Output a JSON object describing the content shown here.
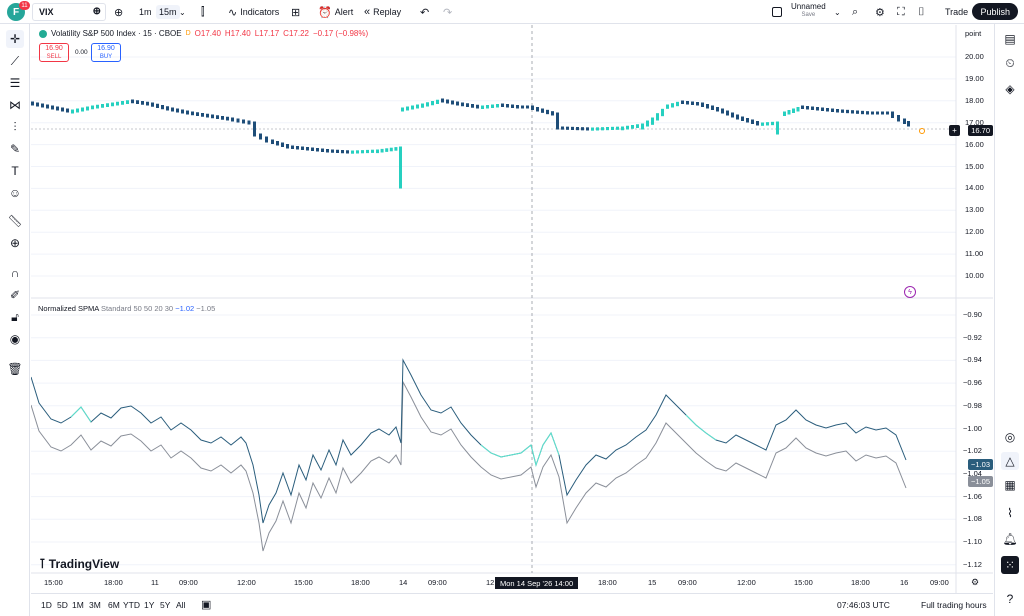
{
  "toolbar": {
    "logo_letter": "F",
    "notif_count": "11",
    "symbol": "VIX",
    "tf_1m": "1m",
    "tf_15m": "15m",
    "indicators": "Indicators",
    "alert": "Alert",
    "replay": "Replay",
    "layout_name": "Unnamed",
    "layout_status": "Save",
    "trade": "Trade",
    "publish": "Publish"
  },
  "legend": {
    "title": "Volatility S&P 500 Index · 15 · CBOE",
    "mark": "D",
    "o": "O17.40",
    "h": "H17.40",
    "l": "L17.17",
    "c": "C17.22",
    "chg": "−0.17 (−0.98%)",
    "sell_price": "16.90",
    "sell_label": "SELL",
    "spread": "0.00",
    "buy_price": "16.90",
    "buy_label": "BUY"
  },
  "indicator": {
    "name": "Normalized SPMA",
    "params": "Standard 50 50 20 30",
    "v1": "−1.02",
    "v2": "−1.05"
  },
  "price_axis": {
    "unit": "point",
    "main_ticks": [
      "20.00",
      "19.00",
      "18.00",
      "17.00",
      "16.00",
      "15.00",
      "14.00",
      "13.00",
      "12.00",
      "11.00",
      "10.00"
    ],
    "current_price": "16.70",
    "ind_ticks": [
      "−0.90",
      "−0.92",
      "−0.94",
      "−0.96",
      "−0.98",
      "−1.00",
      "−1.02",
      "−1.04",
      "−1.06",
      "−1.08",
      "−1.10",
      "−1.12"
    ],
    "ind_tag1": "−1.03",
    "ind_tag2": "−1.05"
  },
  "time_axis": {
    "ticks": [
      "15:00",
      "18:00",
      "11",
      "09:00",
      "12:00",
      "15:00",
      "18:00",
      "14",
      "09:00",
      "12",
      "18:00",
      "15",
      "09:00",
      "12:00",
      "15:00",
      "18:00",
      "16",
      "09:00"
    ],
    "crosshair_label": "Mon 14 Sep '26   14:00"
  },
  "colors": {
    "up": "#26d0c0",
    "down": "#1e4d78",
    "ind1": "#2a5d7c",
    "ind2": "#8a8f99",
    "ind_highlight": "#5ee6d0"
  },
  "bottom": {
    "ranges": [
      "1D",
      "5D",
      "1M",
      "3M",
      "6M",
      "YTD",
      "1Y",
      "5Y",
      "All"
    ],
    "clock": "07:46:03 UTC",
    "session": "Full trading hours"
  },
  "branding": "TradingView"
}
